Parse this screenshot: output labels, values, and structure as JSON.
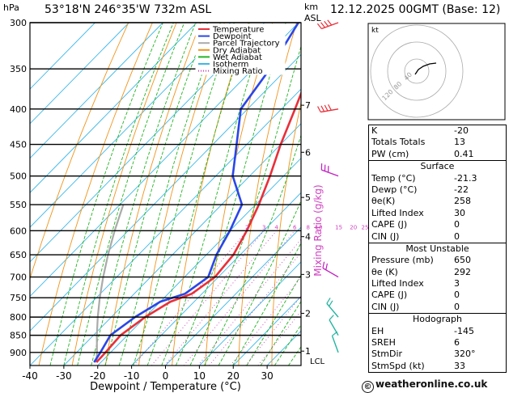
{
  "header": {
    "location": "53°18'N  246°35'W  732m  ASL",
    "datetime": "12.12.2025  00GMT  (Base: 12)",
    "pressure_unit": "hPa",
    "height_unit": "km",
    "height_unit2": "ASL"
  },
  "chart_data": {
    "type": "skew-t",
    "xlabel": "Dewpoint / Temperature (°C)",
    "ylabel_right": "Mixing Ratio (g/kg)",
    "xlim": [
      -40,
      40
    ],
    "ylim_hPa": [
      940,
      300
    ],
    "skew_per_decade": 55,
    "pressure_levels": [
      300,
      350,
      400,
      450,
      500,
      550,
      600,
      650,
      700,
      750,
      800,
      850,
      900
    ],
    "temp_ticks": [
      -40,
      -30,
      -20,
      -10,
      0,
      10,
      20,
      30
    ],
    "km_ticks": [
      {
        "label": "7",
        "p": 395
      },
      {
        "label": "6",
        "p": 462
      },
      {
        "label": "5",
        "p": 537
      },
      {
        "label": "4",
        "p": 612
      },
      {
        "label": "3",
        "p": 694
      },
      {
        "label": "2",
        "p": 790
      },
      {
        "label": "1",
        "p": 896
      }
    ],
    "lcl_label": "LCL",
    "lcl_p": 925,
    "mixing_ratio_labels": [
      "2",
      "3",
      "4",
      "6",
      "8",
      "10",
      "15",
      "20",
      "25"
    ],
    "mixing_ratios": [
      2,
      3,
      4,
      6,
      8,
      10,
      15,
      20,
      25
    ],
    "legend": [
      {
        "label": "Temperature",
        "color": "#e8303a",
        "style": "solid"
      },
      {
        "label": "Dewpoint",
        "color": "#2a46e8",
        "style": "solid"
      },
      {
        "label": "Parcel Trajectory",
        "color": "#aaaaaa",
        "style": "solid"
      },
      {
        "label": "Dry Adiabat",
        "color": "#f0941a",
        "style": "solid"
      },
      {
        "label": "Wet Adiabat",
        "color": "#22b422",
        "style": "solid"
      },
      {
        "label": "Isotherm",
        "color": "#3cb8e8",
        "style": "solid"
      },
      {
        "label": "Mixing Ratio",
        "color": "#d040c0",
        "style": "dotted"
      }
    ],
    "temperature": [
      {
        "p": 930,
        "t": -21.3
      },
      {
        "p": 900,
        "t": -21.5
      },
      {
        "p": 850,
        "t": -22
      },
      {
        "p": 800,
        "t": -20
      },
      {
        "p": 760,
        "t": -17
      },
      {
        "p": 740,
        "t": -13
      },
      {
        "p": 700,
        "t": -11
      },
      {
        "p": 650,
        "t": -12
      },
      {
        "p": 600,
        "t": -15
      },
      {
        "p": 550,
        "t": -19
      },
      {
        "p": 500,
        "t": -24
      },
      {
        "p": 450,
        "t": -30
      },
      {
        "p": 400,
        "t": -36
      },
      {
        "p": 350,
        "t": -43
      },
      {
        "p": 300,
        "t": -49
      }
    ],
    "dewpoint": [
      {
        "p": 930,
        "t": -22
      },
      {
        "p": 900,
        "t": -23
      },
      {
        "p": 850,
        "t": -25
      },
      {
        "p": 800,
        "t": -23
      },
      {
        "p": 760,
        "t": -20
      },
      {
        "p": 740,
        "t": -15
      },
      {
        "p": 700,
        "t": -13
      },
      {
        "p": 650,
        "t": -17
      },
      {
        "p": 600,
        "t": -20
      },
      {
        "p": 550,
        "t": -24
      },
      {
        "p": 500,
        "t": -35
      },
      {
        "p": 450,
        "t": -43
      },
      {
        "p": 400,
        "t": -52
      },
      {
        "p": 350,
        "t": -55
      },
      {
        "p": 300,
        "t": -60
      }
    ],
    "parcel": [
      {
        "p": 930,
        "t": -21.3
      },
      {
        "p": 900,
        "t": -24
      },
      {
        "p": 850,
        "t": -29
      },
      {
        "p": 800,
        "t": -34
      },
      {
        "p": 750,
        "t": -39
      },
      {
        "p": 700,
        "t": -44
      },
      {
        "p": 650,
        "t": -49
      },
      {
        "p": 600,
        "t": -54
      },
      {
        "p": 550,
        "t": -59
      }
    ],
    "wind_barbs": [
      {
        "p": 300,
        "dir": 250,
        "speed": 40
      },
      {
        "p": 400,
        "dir": 260,
        "speed": 35
      },
      {
        "p": 500,
        "dir": 290,
        "speed": 25
      },
      {
        "p": 700,
        "dir": 300,
        "speed": 20
      },
      {
        "p": 800,
        "dir": 320,
        "speed": 15
      },
      {
        "p": 850,
        "dir": 330,
        "speed": 10
      },
      {
        "p": 900,
        "dir": 340,
        "speed": 5
      }
    ],
    "hodograph": {
      "unit_label": "kt",
      "ring_labels": [
        "40",
        "80",
        "120"
      ],
      "points": [
        {
          "u": -2,
          "v": 4
        },
        {
          "u": 2,
          "v": -2
        },
        {
          "u": 8,
          "v": -6
        },
        {
          "u": 16,
          "v": -9
        },
        {
          "u": 24,
          "v": -10
        }
      ]
    }
  },
  "indices": {
    "rows1": [
      {
        "label": "K",
        "value": "-20"
      },
      {
        "label": "Totals Totals",
        "value": "13"
      },
      {
        "label": "PW (cm)",
        "value": "0.41"
      }
    ],
    "surface": {
      "title": "Surface",
      "rows": [
        {
          "label": "Temp (°C)",
          "value": "-21.3"
        },
        {
          "label": "Dewp (°C)",
          "value": "-22"
        },
        {
          "label": "θe(K)",
          "value": "258"
        },
        {
          "label": "Lifted Index",
          "value": "30"
        },
        {
          "label": "CAPE (J)",
          "value": "0"
        },
        {
          "label": "CIN (J)",
          "value": "0"
        }
      ]
    },
    "most_unstable": {
      "title": "Most Unstable",
      "rows": [
        {
          "label": "Pressure (mb)",
          "value": "650"
        },
        {
          "label": "θe (K)",
          "value": "292"
        },
        {
          "label": "Lifted Index",
          "value": "3"
        },
        {
          "label": "CAPE (J)",
          "value": "0"
        },
        {
          "label": "CIN (J)",
          "value": "0"
        }
      ]
    },
    "hodograph": {
      "title": "Hodograph",
      "rows": [
        {
          "label": "EH",
          "value": "-145"
        },
        {
          "label": "SREH",
          "value": "6"
        },
        {
          "label": "StmDir",
          "value": "320°"
        },
        {
          "label": "StmSpd (kt)",
          "value": "33"
        }
      ]
    }
  },
  "footer": {
    "credit": "weatheronline.co.uk",
    "copyright_symbol": "©"
  }
}
